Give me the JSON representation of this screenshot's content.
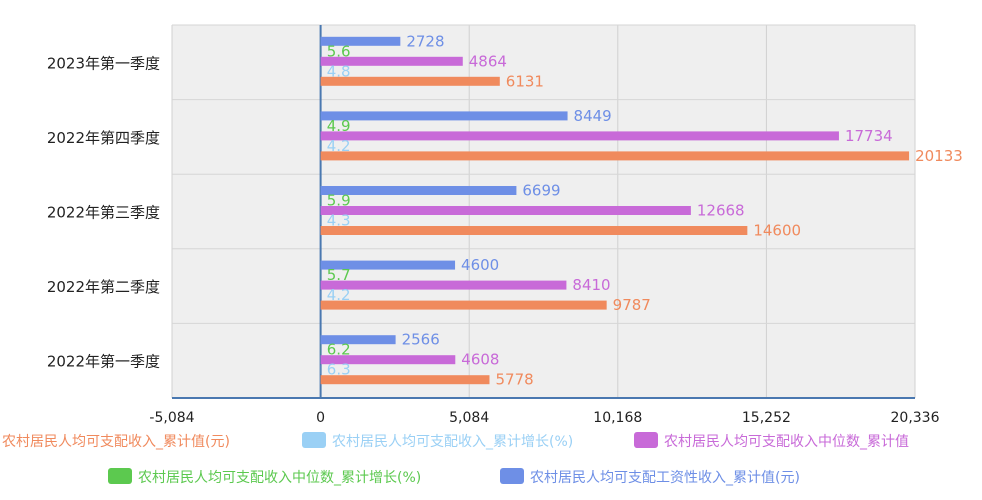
{
  "chart_data": {
    "type": "bar",
    "orientation": "horizontal",
    "categories": [
      "2022年第一季度",
      "2022年第二季度",
      "2022年第三季度",
      "2022年第四季度",
      "2023年第一季度"
    ],
    "series": [
      {
        "name": "农村居民人均可支配收入_累计值(元)",
        "values": [
          5778,
          9787,
          14600,
          20133,
          6131
        ],
        "color": "#f08a5d"
      },
      {
        "name": "农村居民人均可支配收入_累计增长(%)",
        "values": [
          6.3,
          4.2,
          4.3,
          4.2,
          4.8
        ],
        "color": "#9ad0f5"
      },
      {
        "name": "农村居民人均可支配收入中位数_累计值",
        "values": [
          4608,
          8410,
          12668,
          17734,
          4864
        ],
        "color": "#c86ad8"
      },
      {
        "name": "农村居民人均可支配收入中位数_累计增长(%)",
        "values": [
          6.2,
          5.7,
          5.9,
          4.9,
          5.6
        ],
        "color": "#5cc94f"
      },
      {
        "name": "农村居民人均可支配工资性收入_累计值(元)",
        "values": [
          2566,
          4600,
          6699,
          8449,
          2728
        ],
        "color": "#6e8fe6"
      }
    ],
    "xlim": [
      -5084,
      20336
    ],
    "xticks": [
      "-5,084",
      "0",
      "5,084",
      "10,168",
      "15,252",
      "20,336"
    ],
    "grid": true,
    "legend_position": "bottom",
    "xlabel": "",
    "ylabel": ""
  }
}
